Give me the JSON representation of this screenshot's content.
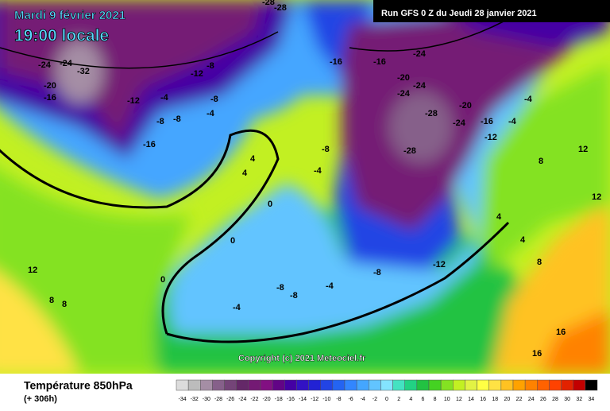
{
  "header": {
    "date": "Mardi 9 février 2021",
    "time": "19:00 locale",
    "run": "Run GFS 0 Z du Jeudi 28 janvier 2021",
    "copyright": "Copyright (c) 2021 Meteociel.fr"
  },
  "footer": {
    "field": "Température 850hPa",
    "lead": "(+ 306h)"
  },
  "legend": {
    "labels": [
      -34,
      -32,
      -30,
      -28,
      -26,
      -24,
      -22,
      -20,
      -18,
      -16,
      -14,
      -12,
      -10,
      -8,
      -6,
      -4,
      -2,
      0,
      2,
      4,
      6,
      8,
      10,
      12,
      14,
      16,
      18,
      20,
      22,
      24,
      26,
      28,
      30,
      32,
      34
    ],
    "colors": [
      "#dcdcdc",
      "#bcbcbc",
      "#a58ea5",
      "#86608a",
      "#744478",
      "#642868",
      "#741a74",
      "#821082",
      "#620486",
      "#4400a4",
      "#3212c4",
      "#2222d4",
      "#2244e4",
      "#2464f2",
      "#3286ff",
      "#44a6ff",
      "#62c4ff",
      "#84e4ff",
      "#44e2c2",
      "#22d284",
      "#22c242",
      "#44d222",
      "#84e222",
      "#c2f022",
      "#e2f244",
      "#ffff44",
      "#ffe244",
      "#ffc222",
      "#ffa200",
      "#ff8200",
      "#ff6200",
      "#ff4200",
      "#e22200",
      "#c20000",
      "#000000"
    ]
  },
  "map_labels": [
    "-28",
    "-28",
    "-24",
    "-16",
    "-32",
    "-24",
    "-20",
    "-16",
    "-12",
    "-8",
    "-12",
    "-4",
    "-8",
    "-8",
    "-4",
    "-8",
    "-16",
    "-16",
    "-24",
    "-24",
    "-20",
    "-24",
    "-20",
    "-28",
    "-24",
    "-28",
    "-16",
    "-12",
    "-4",
    "-8",
    "4",
    "4",
    "0",
    "0",
    "0",
    "-4",
    "-8",
    "-8",
    "-4",
    "-12",
    "-8",
    "8",
    "8",
    "12",
    "12",
    "4",
    "8",
    "12",
    "-4",
    "-4",
    "16",
    "16",
    "8",
    "4"
  ]
}
